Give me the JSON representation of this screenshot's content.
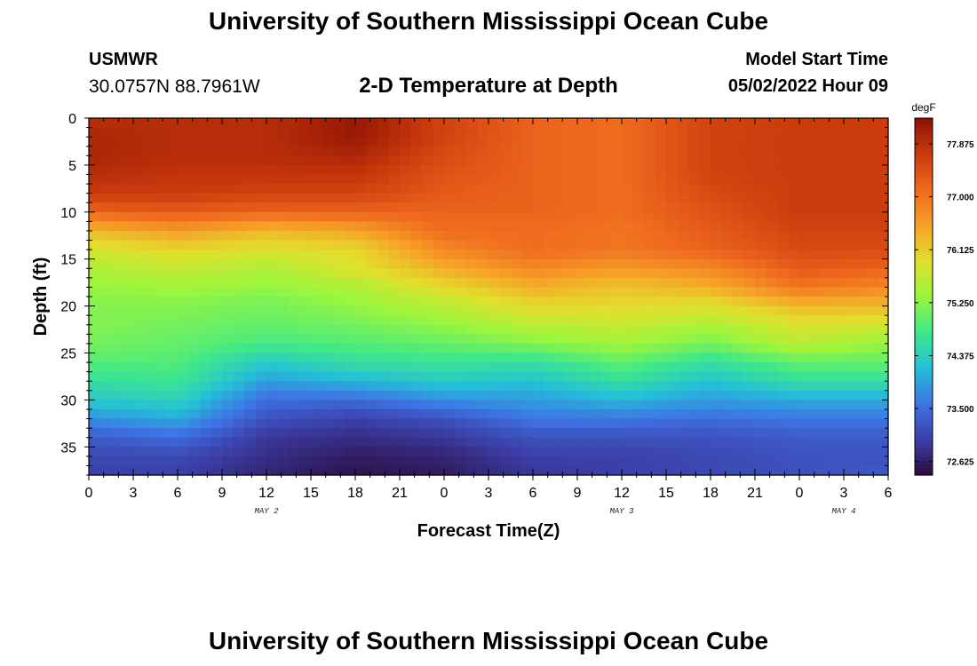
{
  "header": {
    "title": "University of Southern Mississippi Ocean Cube",
    "station": "USMWR",
    "coords": "30.0757N  88.7961W",
    "subtitle": "2-D Temperature at Depth",
    "start_label": "Model Start Time",
    "start_value": "05/02/2022 Hour 09"
  },
  "footer": {
    "title": "University of Southern Mississippi Ocean Cube"
  },
  "chart_data": {
    "type": "heatmap",
    "title": "2-D Temperature at Depth",
    "xlabel": "Forecast Time(Z)",
    "ylabel": "Depth (ft)",
    "x_hours_range": [
      0,
      54
    ],
    "x_tick_labels": [
      "0",
      "3",
      "6",
      "9",
      "12",
      "15",
      "18",
      "21",
      "0",
      "3",
      "6",
      "9",
      "12",
      "15",
      "18",
      "21",
      "0",
      "3",
      "6"
    ],
    "x_tick_step_hours": 3,
    "day_labels": [
      {
        "label": "MAY 2",
        "hour": 12
      },
      {
        "label": "MAY 3",
        "hour": 36
      },
      {
        "label": "MAY 4",
        "hour": 51
      }
    ],
    "ylim": [
      0,
      38
    ],
    "y_ticks": [
      0,
      5,
      10,
      15,
      20,
      25,
      30,
      35
    ],
    "colorbar": {
      "unit": "degF",
      "min": 72.4,
      "max": 78.3,
      "tick_values": [
        77.875,
        77.0,
        76.125,
        75.25,
        74.375,
        73.5,
        72.625
      ],
      "tick_labels": [
        "77.875",
        "77.000",
        "76.125",
        "75.250",
        "74.375",
        "73.500",
        "72.625"
      ],
      "colors": [
        "#2a0b3d",
        "#3c3fa8",
        "#3e74e4",
        "#24c0d8",
        "#3ee88a",
        "#9cf63c",
        "#e2df2c",
        "#f7a128",
        "#ef6a1e",
        "#cb3a0c",
        "#8c1204"
      ]
    },
    "depth_profile_ft": [
      0,
      2,
      4,
      6,
      8,
      10,
      12,
      14,
      16,
      18,
      20,
      22,
      24,
      26,
      28,
      30,
      32,
      34,
      36,
      38
    ],
    "time_profile_hours": [
      0,
      6,
      12,
      18,
      24,
      30,
      36,
      42,
      48,
      54
    ],
    "temperature_degF": [
      [
        77.9,
        77.9,
        77.9,
        78.2,
        77.6,
        77.2,
        77.1,
        77.6,
        77.7,
        77.7
      ],
      [
        78.0,
        77.9,
        77.9,
        78.2,
        77.6,
        77.2,
        77.1,
        77.6,
        77.7,
        77.7
      ],
      [
        78.0,
        77.9,
        77.9,
        78.0,
        77.5,
        77.2,
        77.1,
        77.6,
        77.7,
        77.7
      ],
      [
        77.9,
        77.8,
        77.8,
        77.8,
        77.4,
        77.2,
        77.1,
        77.6,
        77.7,
        77.7
      ],
      [
        77.7,
        77.7,
        77.6,
        77.6,
        77.3,
        77.2,
        77.1,
        77.5,
        77.7,
        77.7
      ],
      [
        77.2,
        77.3,
        77.2,
        77.2,
        77.2,
        77.2,
        77.1,
        77.4,
        77.7,
        77.7
      ],
      [
        76.3,
        76.6,
        76.3,
        76.5,
        77.1,
        77.1,
        77.0,
        77.3,
        77.6,
        77.6
      ],
      [
        75.8,
        76.0,
        75.9,
        76.0,
        76.8,
        77.1,
        77.0,
        77.2,
        77.5,
        77.5
      ],
      [
        75.5,
        75.7,
        75.5,
        75.9,
        76.4,
        76.8,
        76.6,
        76.8,
        77.3,
        77.2
      ],
      [
        75.3,
        75.4,
        75.3,
        75.5,
        76.0,
        76.4,
        76.2,
        76.4,
        77.0,
        76.8
      ],
      [
        75.2,
        75.2,
        75.1,
        75.3,
        75.6,
        76.0,
        76.0,
        75.9,
        76.3,
        76.3
      ],
      [
        75.2,
        75.1,
        75.0,
        75.1,
        75.3,
        75.6,
        75.7,
        75.5,
        75.9,
        75.8
      ],
      [
        75.1,
        75.0,
        74.8,
        74.9,
        75.0,
        75.2,
        75.4,
        75.1,
        75.6,
        75.3
      ],
      [
        74.9,
        74.9,
        74.3,
        74.6,
        74.7,
        74.6,
        75.0,
        74.6,
        75.0,
        75.0
      ],
      [
        74.6,
        74.7,
        73.9,
        74.1,
        74.3,
        74.2,
        74.6,
        74.2,
        74.6,
        74.6
      ],
      [
        74.3,
        74.4,
        73.5,
        73.5,
        73.8,
        73.9,
        74.1,
        73.9,
        74.0,
        74.0
      ],
      [
        73.8,
        74.0,
        73.2,
        73.0,
        73.2,
        73.6,
        73.6,
        73.5,
        73.6,
        73.6
      ],
      [
        73.3,
        73.5,
        72.9,
        72.8,
        72.9,
        73.2,
        73.2,
        73.2,
        73.3,
        73.3
      ],
      [
        73.1,
        73.1,
        72.8,
        72.6,
        72.7,
        73.0,
        73.0,
        73.1,
        73.2,
        73.2
      ],
      [
        73.0,
        73.0,
        72.7,
        72.5,
        72.6,
        72.9,
        73.0,
        73.1,
        73.2,
        73.3
      ]
    ]
  }
}
